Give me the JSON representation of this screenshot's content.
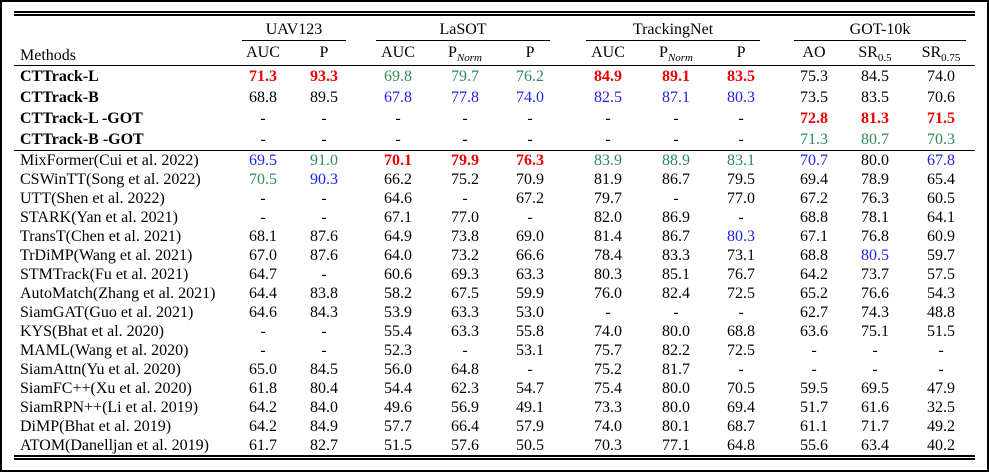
{
  "table": {
    "methods_header": "Methods",
    "groups": [
      {
        "label": "UAV123",
        "cols": [
          {
            "t": "AUC"
          },
          {
            "t": "P"
          }
        ]
      },
      {
        "label": "LaSOT",
        "cols": [
          {
            "t": "AUC"
          },
          {
            "t": "P",
            "s": "Norm",
            "it": true
          },
          {
            "t": "P"
          }
        ]
      },
      {
        "label": "TrackingNet",
        "cols": [
          {
            "t": "AUC"
          },
          {
            "t": "P",
            "s": "Norm",
            "it": true
          },
          {
            "t": "P"
          }
        ]
      },
      {
        "label": "GOT-10k",
        "cols": [
          {
            "t": "AO"
          },
          {
            "t": "SR",
            "s": "0.5"
          },
          {
            "t": "SR",
            "s": "0.75"
          }
        ]
      }
    ],
    "sections": [
      {
        "name": "ours",
        "rows": [
          {
            "method": "CTTrack-L",
            "bold": true,
            "cells": [
              {
                "v": "71.3",
                "c": "best"
              },
              {
                "v": "93.3",
                "c": "best"
              },
              {
                "v": "69.8",
                "c": "second"
              },
              {
                "v": "79.7",
                "c": "second"
              },
              {
                "v": "76.2",
                "c": "second"
              },
              {
                "v": "84.9",
                "c": "best"
              },
              {
                "v": "89.1",
                "c": "best"
              },
              {
                "v": "83.5",
                "c": "best"
              },
              "75.3",
              "84.5",
              "74.0"
            ]
          },
          {
            "method": "CTTrack-B",
            "bold": true,
            "cells": [
              "68.8",
              "89.5",
              {
                "v": "67.8",
                "c": "third"
              },
              {
                "v": "77.8",
                "c": "third"
              },
              {
                "v": "74.0",
                "c": "third"
              },
              {
                "v": "82.5",
                "c": "third"
              },
              {
                "v": "87.1",
                "c": "third"
              },
              {
                "v": "80.3",
                "c": "third"
              },
              "73.5",
              "83.5",
              "70.6"
            ]
          },
          {
            "method": "CTTrack-L -GOT",
            "bold": true,
            "cells": [
              "-",
              "-",
              "-",
              "-",
              "-",
              "-",
              "-",
              "-",
              {
                "v": "72.8",
                "c": "best"
              },
              {
                "v": "81.3",
                "c": "best"
              },
              {
                "v": "71.5",
                "c": "best"
              }
            ]
          },
          {
            "method": "CTTrack-B -GOT",
            "bold": true,
            "cells": [
              "-",
              "-",
              "-",
              "-",
              "-",
              "-",
              "-",
              "-",
              {
                "v": "71.3",
                "c": "second"
              },
              {
                "v": "80.7",
                "c": "second"
              },
              {
                "v": "70.3",
                "c": "second"
              }
            ]
          }
        ]
      },
      {
        "name": "prior",
        "rows": [
          {
            "method": "MixFormer(Cui et al. 2022)",
            "cells": [
              {
                "v": "69.5",
                "c": "third"
              },
              {
                "v": "91.0",
                "c": "second"
              },
              {
                "v": "70.1",
                "c": "best"
              },
              {
                "v": "79.9",
                "c": "best"
              },
              {
                "v": "76.3",
                "c": "best"
              },
              {
                "v": "83.9",
                "c": "second"
              },
              {
                "v": "88.9",
                "c": "second"
              },
              {
                "v": "83.1",
                "c": "second"
              },
              {
                "v": "70.7",
                "c": "third"
              },
              "80.0",
              {
                "v": "67.8",
                "c": "third"
              }
            ]
          },
          {
            "method": "CSWinTT(Song et al. 2022)",
            "cells": [
              {
                "v": "70.5",
                "c": "second"
              },
              {
                "v": "90.3",
                "c": "third"
              },
              "66.2",
              "75.2",
              "70.9",
              "81.9",
              "86.7",
              "79.5",
              "69.4",
              "78.9",
              "65.4"
            ]
          },
          {
            "method": "UTT(Shen et al. 2022)",
            "cells": [
              "-",
              "-",
              "64.6",
              "-",
              "67.2",
              "79.7",
              "-",
              "77.0",
              "67.2",
              "76.3",
              "60.5"
            ]
          },
          {
            "method": "STARK(Yan et al. 2021)",
            "cells": [
              "-",
              "-",
              "67.1",
              "77.0",
              "-",
              "82.0",
              "86.9",
              "-",
              "68.8",
              "78.1",
              "64.1"
            ]
          },
          {
            "method": "TransT(Chen et al. 2021)",
            "cells": [
              "68.1",
              "87.6",
              "64.9",
              "73.8",
              "69.0",
              "81.4",
              "86.7",
              {
                "v": "80.3",
                "c": "third"
              },
              "67.1",
              "76.8",
              "60.9"
            ]
          },
          {
            "method": "TrDiMP(Wang et al. 2021)",
            "cells": [
              "67.0",
              "87.6",
              "64.0",
              "73.2",
              "66.6",
              "78.4",
              "83.3",
              "73.1",
              "68.8",
              {
                "v": "80.5",
                "c": "third"
              },
              "59.7"
            ]
          },
          {
            "method": "STMTrack(Fu et al. 2021)",
            "cells": [
              "64.7",
              "-",
              "60.6",
              "69.3",
              "63.3",
              "80.3",
              "85.1",
              "76.7",
              "64.2",
              "73.7",
              "57.5"
            ]
          },
          {
            "method": "AutoMatch(Zhang et al. 2021)",
            "cells": [
              "64.4",
              "83.8",
              "58.2",
              "67.5",
              "59.9",
              "76.0",
              "82.4",
              "72.5",
              "65.2",
              "76.6",
              "54.3"
            ]
          },
          {
            "method": "SiamGAT(Guo et al. 2021)",
            "cells": [
              "64.6",
              "84.3",
              "53.9",
              "63.3",
              "53.0",
              "-",
              "-",
              "-",
              "62.7",
              "74.3",
              "48.8"
            ]
          },
          {
            "method": "KYS(Bhat et al. 2020)",
            "cells": [
              "-",
              "-",
              "55.4",
              "63.3",
              "55.8",
              "74.0",
              "80.0",
              "68.8",
              "63.6",
              "75.1",
              "51.5"
            ]
          },
          {
            "method": "MAML(Wang et al. 2020)",
            "cells": [
              "-",
              "-",
              "52.3",
              "-",
              "53.1",
              "75.7",
              "82.2",
              "72.5",
              "-",
              "-",
              "-"
            ]
          },
          {
            "method": "SiamAttn(Yu et al. 2020)",
            "cells": [
              "65.0",
              "84.5",
              "56.0",
              "64.8",
              "-",
              "75.2",
              "81.7",
              "-",
              "-",
              "-",
              "-"
            ]
          },
          {
            "method": "SiamFC++(Xu et al. 2020)",
            "cells": [
              "61.8",
              "80.4",
              "54.4",
              "62.3",
              "54.7",
              "75.4",
              "80.0",
              "70.5",
              "59.5",
              "69.5",
              "47.9"
            ]
          },
          {
            "method": "SiamRPN++(Li et al. 2019)",
            "cells": [
              "64.2",
              "84.0",
              "49.6",
              "56.9",
              "49.1",
              "73.3",
              "80.0",
              "69.4",
              "51.7",
              "61.6",
              "32.5"
            ]
          },
          {
            "method": "DiMP(Bhat et al. 2019)",
            "cells": [
              "64.2",
              "84.9",
              "57.7",
              "66.4",
              "57.9",
              "74.0",
              "80.1",
              "68.7",
              "61.1",
              "71.7",
              "49.2"
            ]
          },
          {
            "method": "ATOM(Danelljan et al. 2019)",
            "cells": [
              "61.7",
              "82.7",
              "51.5",
              "57.6",
              "50.5",
              "70.3",
              "77.1",
              "64.8",
              "55.6",
              "63.4",
              "40.2"
            ]
          }
        ]
      }
    ]
  },
  "colors": {
    "best": "#ee0000",
    "second": "#2e8b57",
    "third": "#2222ee",
    "text": "#000000"
  }
}
